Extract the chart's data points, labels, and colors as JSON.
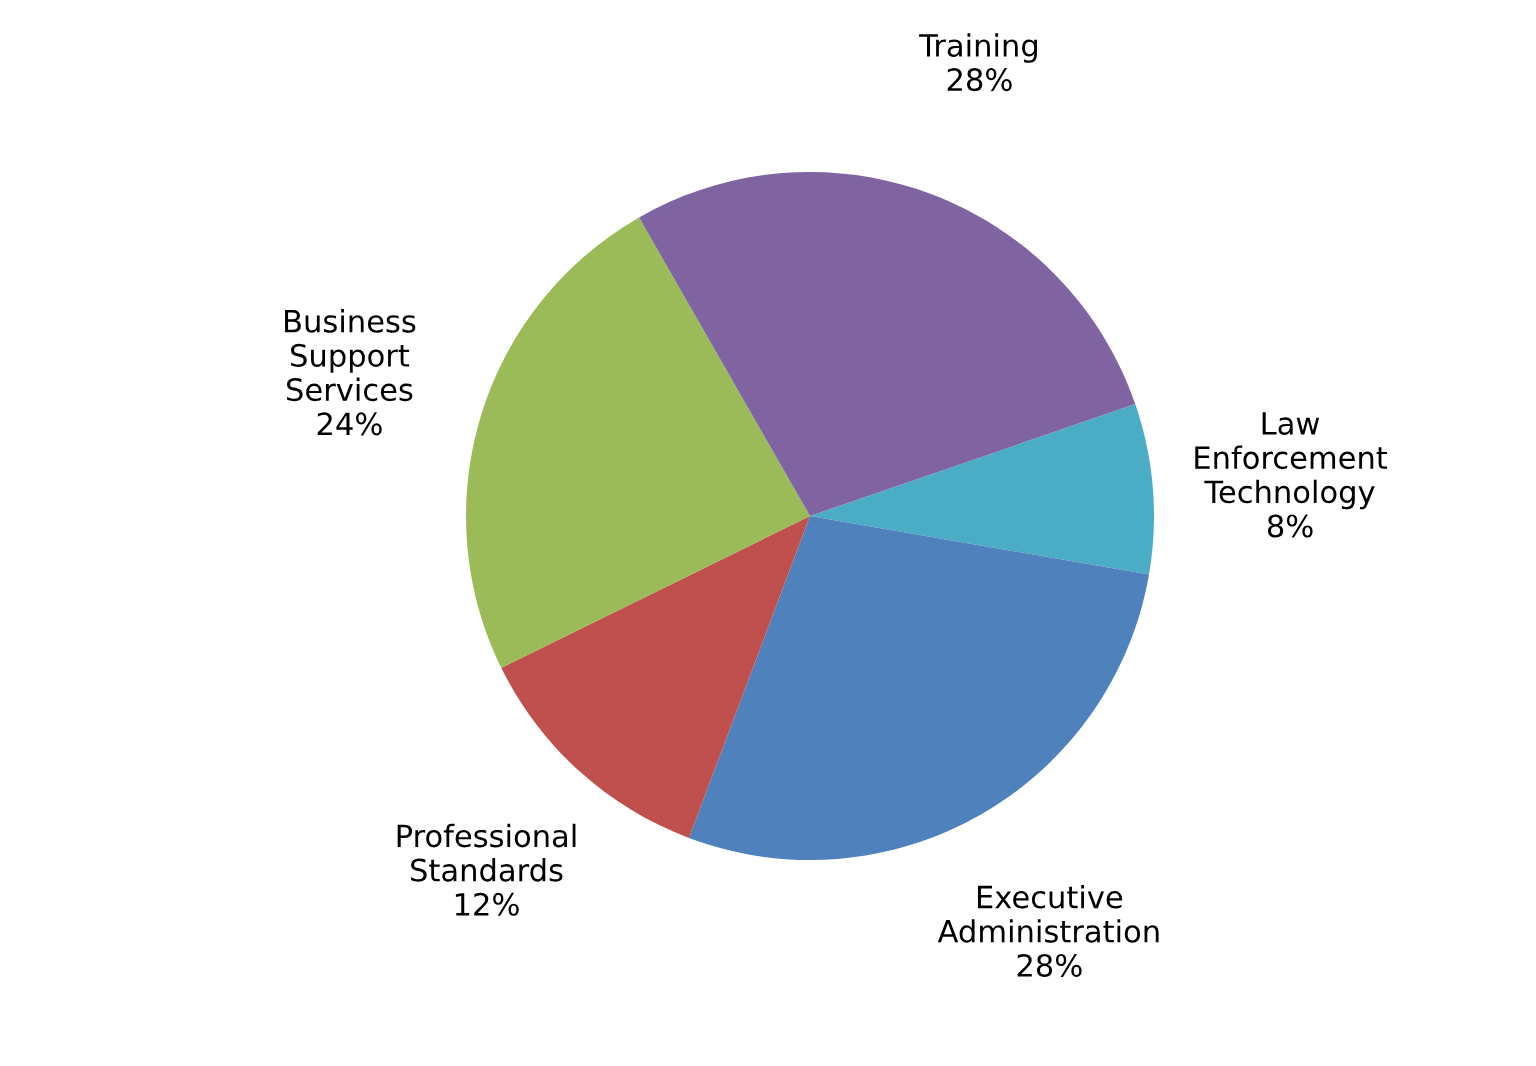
{
  "chart_data": {
    "type": "pie",
    "categories": [
      "Law Enforcement Technology",
      "Executive Administration",
      "Professional Standards",
      "Business Support Services",
      "Training"
    ],
    "values": [
      8,
      28,
      12,
      24,
      28
    ],
    "value_labels": [
      "8%",
      "28%",
      "12%",
      "24%",
      "28%"
    ],
    "colors": [
      "#4bacc6",
      "#4f81bd",
      "#c0504d",
      "#9bbb59",
      "#8064a2"
    ]
  }
}
